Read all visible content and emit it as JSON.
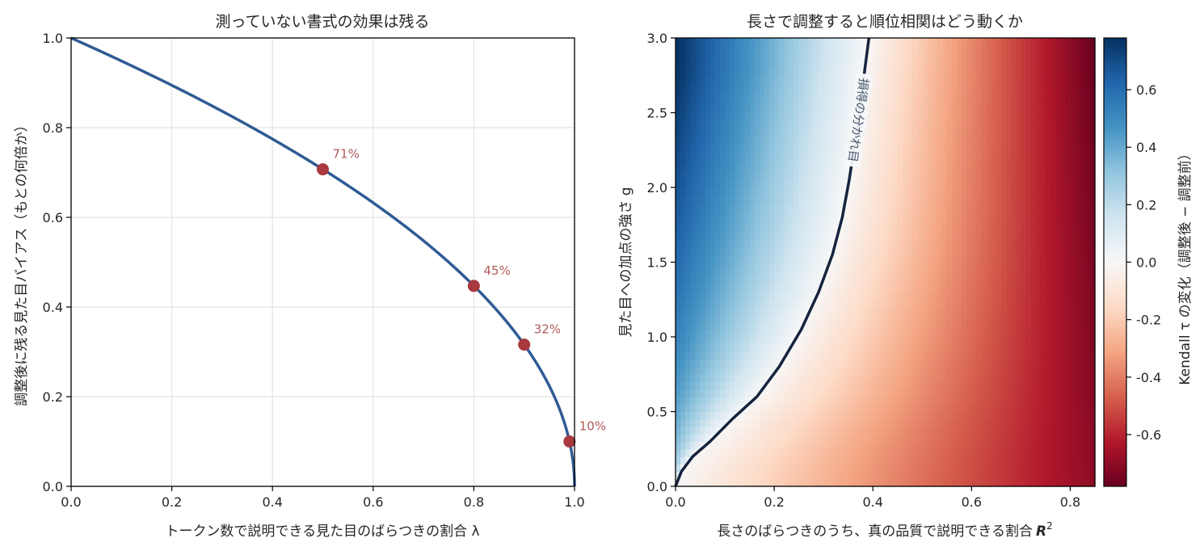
{
  "chart_data": [
    {
      "type": "line",
      "title": "測っていない書式の効果は残る",
      "xlabel": "トークン数で説明できる見た目のばらつきの割合 λ",
      "ylabel": "調整後に残る見た目バイアス（もとの何倍か）",
      "xlim": [
        0,
        1
      ],
      "ylim": [
        0,
        1
      ],
      "grid": true,
      "x_ticks": [
        "0.0",
        "0.2",
        "0.4",
        "0.6",
        "0.8",
        "1.0"
      ],
      "y_ticks": [
        "0.0",
        "0.2",
        "0.4",
        "0.6",
        "0.8",
        "1.0"
      ],
      "series": [
        {
          "formula": "sqrt(1 - lambda)",
          "color": "#2f5b94"
        }
      ],
      "markers": [
        {
          "x": 0.5,
          "y": 0.707,
          "label": "71%"
        },
        {
          "x": 0.8,
          "y": 0.447,
          "label": "45%"
        },
        {
          "x": 0.9,
          "y": 0.316,
          "label": "32%"
        },
        {
          "x": 0.99,
          "y": 0.1,
          "label": "10%"
        }
      ],
      "marker_color": "#a8393e",
      "label_color": "#b05a5a"
    },
    {
      "type": "heatmap",
      "title": "長さで調整すると順位相関はどう動くか",
      "xlabel": "長さのばらつきのうち、真の品質で説明できる割合",
      "xlabel_symbol": "R",
      "xlabel_superscript": "2",
      "ylabel": "見た目への加点の強さ g",
      "xlim": [
        0,
        0.85
      ],
      "ylim": [
        0,
        3
      ],
      "x_ticks": [
        "0.0",
        "0.2",
        "0.4",
        "0.6",
        "0.8"
      ],
      "y_ticks": [
        "0.0",
        "0.5",
        "1.0",
        "1.5",
        "2.0",
        "2.5",
        "3.0"
      ],
      "colormap": "RdBu",
      "vmin": -0.78,
      "vmax": 0.78,
      "colorbar": {
        "label": "Kendall τ の変化（調整後 − 調整前）",
        "ticks": [
          "0.6",
          "0.4",
          "0.2",
          "0.0",
          "-0.2",
          "-0.4",
          "-0.6"
        ]
      },
      "contour": {
        "label": "損得の分かれ目",
        "level": 0,
        "points": [
          [
            0,
            0
          ],
          [
            0.012,
            0.1
          ],
          [
            0.035,
            0.2
          ],
          [
            0.07,
            0.3
          ],
          [
            0.115,
            0.45
          ],
          [
            0.165,
            0.6
          ],
          [
            0.21,
            0.8
          ],
          [
            0.255,
            1.05
          ],
          [
            0.29,
            1.3
          ],
          [
            0.318,
            1.55
          ],
          [
            0.338,
            1.8
          ],
          [
            0.352,
            2.05
          ],
          [
            0.366,
            2.35
          ],
          [
            0.377,
            2.62
          ],
          [
            0.386,
            2.85
          ],
          [
            0.392,
            3.0
          ]
        ],
        "color": "#16233d"
      }
    }
  ]
}
